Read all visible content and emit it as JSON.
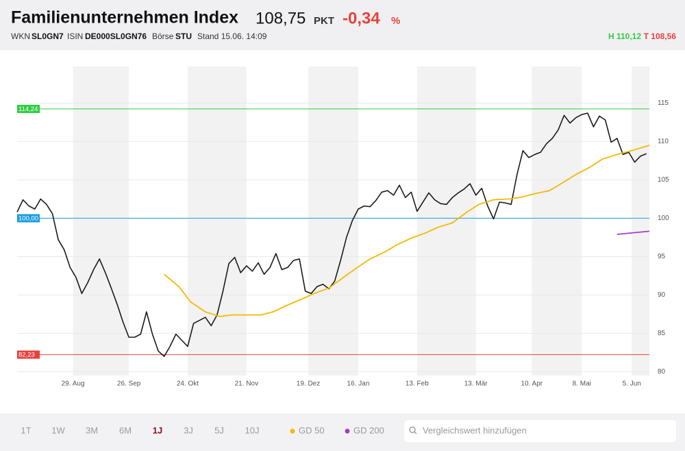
{
  "header": {
    "title": "Familienunternehmen Index",
    "price": "108,75",
    "unit": "PKT",
    "change": "-0,34",
    "change_unit": "%",
    "wkn_label": "WKN",
    "wkn": "SL0GN7",
    "isin_label": "ISIN",
    "isin": "DE000SL0GN76",
    "exchange_label": "Börse",
    "exchange": "STU",
    "timestamp": "Stand 15.06. 14:09",
    "high": "H 110,12",
    "low": "T 108,56"
  },
  "chart_data": {
    "type": "line",
    "xlim": [
      0,
      215
    ],
    "xticks": [
      {
        "value": 19,
        "label": "29. Aug"
      },
      {
        "value": 38,
        "label": "26. Sep"
      },
      {
        "value": 58,
        "label": "24. Okt"
      },
      {
        "value": 78,
        "label": "21. Nov"
      },
      {
        "value": 99,
        "label": "19. Dez"
      },
      {
        "value": 116,
        "label": "16. Jan"
      },
      {
        "value": 136,
        "label": "13. Feb"
      },
      {
        "value": 156,
        "label": "13. Mär"
      },
      {
        "value": 175,
        "label": "10. Apr"
      },
      {
        "value": 192,
        "label": "8. Mai"
      },
      {
        "value": 209,
        "label": "5. Jun"
      }
    ],
    "ylim": [
      79.5,
      119.5
    ],
    "yticks": [
      80,
      85,
      90,
      95,
      100,
      105,
      110,
      115
    ],
    "grid": true,
    "levels": [
      {
        "value": 114.24,
        "label": "114,24",
        "color": "#2ecc40"
      },
      {
        "value": 100,
        "label": "100,00",
        "color": "#1a9ee0"
      },
      {
        "value": 82.23,
        "label": "82,23",
        "color": "#e8413b"
      }
    ],
    "series": [
      {
        "color": "#1a1a1a",
        "x": [
          0,
          2,
          4,
          6,
          8,
          10,
          12,
          14,
          16,
          18,
          20,
          22,
          24,
          26,
          28,
          30,
          32,
          34,
          36,
          38,
          40,
          42,
          44,
          46,
          48,
          50,
          52,
          54,
          56,
          58,
          60,
          62,
          64,
          66,
          68,
          70,
          72,
          74,
          76,
          78,
          80,
          82,
          84,
          86,
          88,
          90,
          92,
          94,
          96,
          98,
          100,
          102,
          104,
          106,
          108,
          110,
          112,
          114,
          116,
          118,
          120,
          122,
          124,
          126,
          128,
          130,
          132,
          134,
          136,
          138,
          140,
          142,
          144,
          146,
          148,
          150,
          152,
          154,
          156,
          158,
          160,
          162,
          164,
          166,
          168,
          170,
          172,
          174,
          176,
          178,
          180,
          182,
          184,
          186,
          188,
          190,
          192,
          194,
          196,
          198,
          200,
          202,
          204,
          206,
          208,
          210,
          212,
          214
        ],
        "values": [
          100.8,
          102.4,
          101.6,
          101.2,
          102.5,
          101.8,
          100.6,
          97.2,
          95.9,
          93.6,
          92.3,
          90.2,
          91.6,
          93.3,
          94.7,
          92.9,
          90.9,
          88.8,
          86.5,
          84.5,
          84.5,
          84.9,
          87.8,
          84.9,
          82.7,
          82.0,
          83.3,
          84.9,
          84.1,
          83.3,
          86.3,
          86.7,
          87.1,
          86.0,
          87.4,
          90.5,
          94.1,
          94.9,
          92.9,
          93.8,
          93.1,
          94.2,
          92.7,
          93.6,
          95.4,
          93.3,
          93.6,
          94.5,
          94.7,
          90.5,
          90.2,
          91.1,
          91.4,
          90.8,
          91.8,
          94.5,
          97.5,
          99.7,
          101.2,
          101.6,
          101.5,
          102.3,
          103.4,
          103.6,
          103.0,
          104.3,
          102.7,
          103.4,
          100.9,
          102.1,
          103.3,
          102.4,
          101.9,
          101.8,
          102.7,
          103.3,
          103.8,
          104.5,
          103.0,
          103.9,
          101.6,
          99.9,
          102.1,
          102.0,
          101.8,
          105.7,
          108.8,
          107.9,
          108.3,
          108.6,
          109.7,
          110.4,
          111.5,
          113.4,
          112.4,
          113.1,
          113.5,
          113.7,
          111.9,
          113.3,
          112.8,
          109.9,
          110.4,
          108.3,
          108.6,
          107.3,
          108.1,
          108.4
        ]
      },
      {
        "name": "GD 50",
        "color": "#f5b800",
        "x": [
          50,
          55,
          59,
          64,
          69,
          73,
          78,
          83,
          87,
          92,
          97,
          101,
          106,
          111,
          115,
          120,
          125,
          129,
          134,
          139,
          143,
          148,
          153,
          157,
          162,
          167,
          171,
          176,
          181,
          185,
          190,
          195,
          199,
          204,
          209,
          215
        ],
        "values": [
          92.7,
          91.1,
          89.1,
          87.8,
          87.2,
          87.4,
          87.4,
          87.4,
          87.8,
          88.7,
          89.5,
          90.2,
          90.9,
          92.3,
          93.4,
          94.7,
          95.6,
          96.5,
          97.4,
          98.1,
          98.8,
          99.4,
          100.8,
          101.8,
          102.4,
          102.5,
          102.7,
          103.2,
          103.6,
          104.5,
          105.7,
          106.7,
          107.7,
          108.3,
          108.8,
          109.5
        ]
      },
      {
        "name": "GD 200",
        "color": "#a23fc0",
        "x": [
          204,
          215
        ],
        "values": [
          97.9,
          98.3
        ]
      }
    ]
  },
  "controls": {
    "ranges": [
      "1T",
      "1W",
      "3M",
      "6M",
      "1J",
      "3J",
      "5J",
      "10J"
    ],
    "active_index": 4,
    "search_placeholder": "Vergleichswert hinzufügen"
  }
}
